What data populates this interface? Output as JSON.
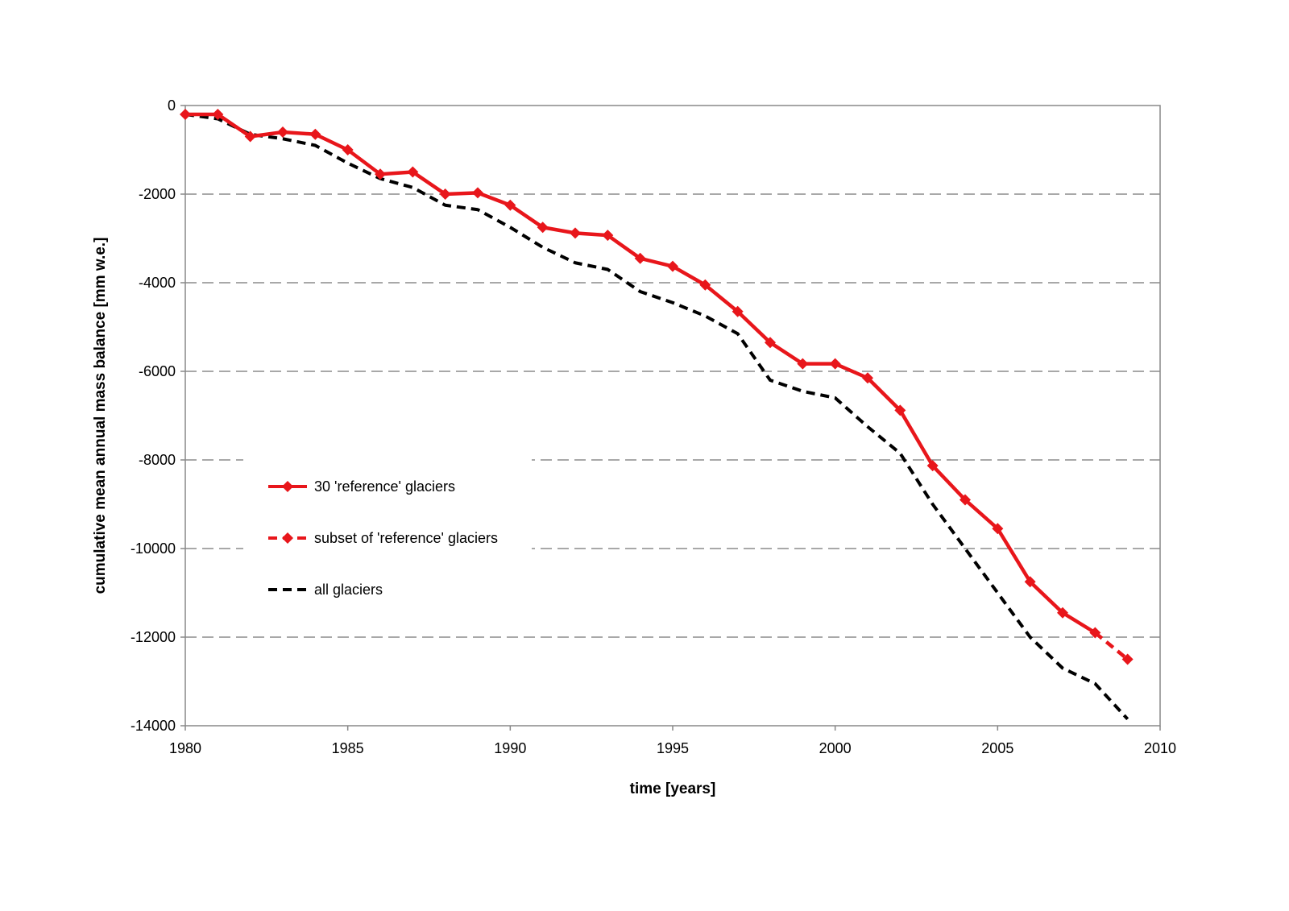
{
  "chart_data": {
    "type": "line",
    "title": "",
    "xlabel": "time [years]",
    "ylabel": "cumulative mean annual mass balance [mm w.e.]",
    "xlim": [
      1980,
      2010
    ],
    "ylim": [
      -14000,
      0
    ],
    "x_ticks": [
      1980,
      1985,
      1990,
      1995,
      2000,
      2005,
      2010
    ],
    "y_ticks": [
      0,
      -2000,
      -4000,
      -6000,
      -8000,
      -10000,
      -12000,
      -14000
    ],
    "grid": "horizontal dashed",
    "legend_position": "lower-left inside",
    "series": [
      {
        "name": "30 'reference' glaciers",
        "color": "#e8161b",
        "style": "solid",
        "marker": "diamond",
        "x": [
          1980,
          1981,
          1982,
          1983,
          1984,
          1985,
          1986,
          1987,
          1988,
          1989,
          1990,
          1991,
          1992,
          1993,
          1994,
          1995,
          1996,
          1997,
          1998,
          1999,
          2000,
          2001,
          2002,
          2003,
          2004,
          2005,
          2006,
          2007,
          2008
        ],
        "y": [
          -200,
          -200,
          -700,
          -600,
          -650,
          -1000,
          -1550,
          -1500,
          -2000,
          -1970,
          -2250,
          -2750,
          -2880,
          -2930,
          -3450,
          -3630,
          -4050,
          -4650,
          -5350,
          -5830,
          -5830,
          -6150,
          -6880,
          -8130,
          -8900,
          -9550,
          -10750,
          -11450,
          -11900
        ]
      },
      {
        "name": "subset of 'reference' glaciers",
        "color": "#e8161b",
        "style": "dashed",
        "marker": "diamond",
        "x": [
          2008,
          2009
        ],
        "y": [
          -11900,
          -12500
        ]
      },
      {
        "name": "all glaciers",
        "color": "#000000",
        "style": "dashed",
        "marker": "none",
        "x": [
          1980,
          1981,
          1982,
          1983,
          1984,
          1985,
          1986,
          1987,
          1988,
          1989,
          1990,
          1991,
          1992,
          1993,
          1994,
          1995,
          1996,
          1997,
          1998,
          1999,
          2000,
          2001,
          2002,
          2003,
          2004,
          2005,
          2006,
          2007,
          2008,
          2009
        ],
        "y": [
          -200,
          -300,
          -650,
          -750,
          -900,
          -1300,
          -1650,
          -1850,
          -2250,
          -2350,
          -2750,
          -3200,
          -3550,
          -3700,
          -4200,
          -4450,
          -4750,
          -5150,
          -6200,
          -6450,
          -6600,
          -7250,
          -7850,
          -9000,
          -10000,
          -11000,
          -12000,
          -12700,
          -13050,
          -13850
        ]
      }
    ]
  }
}
